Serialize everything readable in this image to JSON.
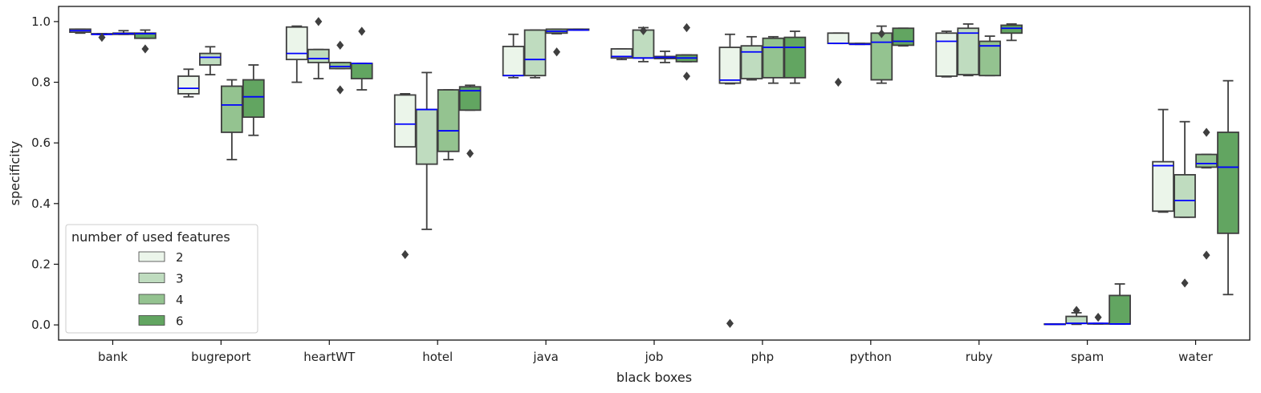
{
  "chart_data": {
    "type": "box",
    "xlabel": "black boxes",
    "ylabel": "specificity",
    "ylim": [
      -0.05,
      1.05
    ],
    "yticks": [
      "0.0",
      "0.2",
      "0.4",
      "0.6",
      "0.8",
      "1.0"
    ],
    "grid": false,
    "legend": {
      "title": "number of used features",
      "position": "lower-left",
      "entries": [
        "2",
        "3",
        "4",
        "6"
      ]
    },
    "colors": {
      "2": "#ebf5ea",
      "3": "#bfdcbf",
      "4": "#94c390",
      "6": "#62a561",
      "median": "#0000ff",
      "edge": "#3f3f3f"
    },
    "categories": [
      "bank",
      "bugreport",
      "heartWT",
      "hotel",
      "java",
      "job",
      "php",
      "python",
      "ruby",
      "spam",
      "water"
    ],
    "series": [
      {
        "name": "2",
        "boxes": [
          {
            "wlo": 0.962,
            "q1": 0.965,
            "med": 0.97,
            "q3": 0.975,
            "whi": 0.975,
            "fliers": []
          },
          {
            "wlo": 0.752,
            "q1": 0.762,
            "med": 0.78,
            "q3": 0.82,
            "whi": 0.843,
            "fliers": []
          },
          {
            "wlo": 0.8,
            "q1": 0.875,
            "med": 0.895,
            "q3": 0.982,
            "whi": 0.985,
            "fliers": []
          },
          {
            "wlo": 0.587,
            "q1": 0.587,
            "med": 0.662,
            "q3": 0.758,
            "whi": 0.762,
            "fliers": [
              0.232
            ]
          },
          {
            "wlo": 0.815,
            "q1": 0.822,
            "med": 0.822,
            "q3": 0.918,
            "whi": 0.958,
            "fliers": []
          },
          {
            "wlo": 0.875,
            "q1": 0.88,
            "med": 0.885,
            "q3": 0.91,
            "whi": 0.91,
            "fliers": []
          },
          {
            "wlo": 0.795,
            "q1": 0.797,
            "med": 0.807,
            "q3": 0.915,
            "whi": 0.958,
            "fliers": [
              0.005
            ]
          },
          {
            "wlo": 0.928,
            "q1": 0.928,
            "med": 0.928,
            "q3": 0.962,
            "whi": 0.962,
            "fliers": [
              0.8
            ]
          },
          {
            "wlo": 0.818,
            "q1": 0.82,
            "med": 0.935,
            "q3": 0.962,
            "whi": 0.968,
            "fliers": []
          },
          {
            "wlo": 0.002,
            "q1": 0.002,
            "med": 0.002,
            "q3": 0.003,
            "whi": 0.003,
            "fliers": []
          },
          {
            "wlo": 0.372,
            "q1": 0.375,
            "med": 0.525,
            "q3": 0.538,
            "whi": 0.71,
            "fliers": []
          }
        ]
      },
      {
        "name": "3",
        "boxes": [
          {
            "wlo": 0.958,
            "q1": 0.958,
            "med": 0.958,
            "q3": 0.96,
            "whi": 0.96,
            "fliers": [
              0.948
            ]
          },
          {
            "wlo": 0.825,
            "q1": 0.857,
            "med": 0.882,
            "q3": 0.895,
            "whi": 0.917,
            "fliers": []
          },
          {
            "wlo": 0.812,
            "q1": 0.865,
            "med": 0.878,
            "q3": 0.908,
            "whi": 0.908,
            "fliers": [
              1.0
            ]
          },
          {
            "wlo": 0.315,
            "q1": 0.53,
            "med": 0.71,
            "q3": 0.71,
            "whi": 0.832,
            "fliers": []
          },
          {
            "wlo": 0.815,
            "q1": 0.822,
            "med": 0.875,
            "q3": 0.972,
            "whi": 0.972,
            "fliers": []
          },
          {
            "wlo": 0.868,
            "q1": 0.88,
            "med": 0.88,
            "q3": 0.972,
            "whi": 0.98,
            "fliers": [
              0.97
            ]
          },
          {
            "wlo": 0.808,
            "q1": 0.812,
            "med": 0.9,
            "q3": 0.92,
            "whi": 0.95,
            "fliers": []
          },
          {
            "wlo": 0.925,
            "q1": 0.925,
            "med": 0.925,
            "q3": 0.928,
            "whi": 0.928,
            "fliers": []
          },
          {
            "wlo": 0.822,
            "q1": 0.825,
            "med": 0.962,
            "q3": 0.978,
            "whi": 0.992,
            "fliers": []
          },
          {
            "wlo": 0.002,
            "q1": 0.005,
            "med": 0.005,
            "q3": 0.028,
            "whi": 0.04,
            "fliers": [
              0.048
            ]
          },
          {
            "wlo": 0.355,
            "q1": 0.355,
            "med": 0.41,
            "q3": 0.495,
            "whi": 0.67,
            "fliers": [
              0.138
            ]
          }
        ]
      },
      {
        "name": "4",
        "boxes": [
          {
            "wlo": 0.958,
            "q1": 0.958,
            "med": 0.96,
            "q3": 0.962,
            "whi": 0.97,
            "fliers": []
          },
          {
            "wlo": 0.545,
            "q1": 0.635,
            "med": 0.725,
            "q3": 0.787,
            "whi": 0.808,
            "fliers": []
          },
          {
            "wlo": 0.845,
            "q1": 0.845,
            "med": 0.852,
            "q3": 0.865,
            "whi": 0.865,
            "fliers": [
              0.922,
              0.775
            ]
          },
          {
            "wlo": 0.545,
            "q1": 0.572,
            "med": 0.64,
            "q3": 0.775,
            "whi": 0.775,
            "fliers": []
          },
          {
            "wlo": 0.96,
            "q1": 0.962,
            "med": 0.968,
            "q3": 0.975,
            "whi": 0.975,
            "fliers": [
              0.9
            ]
          },
          {
            "wlo": 0.865,
            "q1": 0.878,
            "med": 0.882,
            "q3": 0.885,
            "whi": 0.902,
            "fliers": []
          },
          {
            "wlo": 0.797,
            "q1": 0.815,
            "med": 0.915,
            "q3": 0.945,
            "whi": 0.95,
            "fliers": []
          },
          {
            "wlo": 0.797,
            "q1": 0.808,
            "med": 0.932,
            "q3": 0.962,
            "whi": 0.985,
            "fliers": [
              0.96
            ]
          },
          {
            "wlo": 0.822,
            "q1": 0.822,
            "med": 0.92,
            "q3": 0.935,
            "whi": 0.952,
            "fliers": []
          },
          {
            "wlo": 0.003,
            "q1": 0.003,
            "med": 0.005,
            "q3": 0.005,
            "whi": 0.005,
            "fliers": [
              0.025
            ]
          },
          {
            "wlo": 0.518,
            "q1": 0.52,
            "med": 0.532,
            "q3": 0.562,
            "whi": 0.562,
            "fliers": [
              0.635,
              0.23
            ]
          }
        ]
      },
      {
        "name": "6",
        "boxes": [
          {
            "wlo": 0.945,
            "q1": 0.945,
            "med": 0.96,
            "q3": 0.962,
            "whi": 0.972,
            "fliers": [
              0.91
            ]
          },
          {
            "wlo": 0.625,
            "q1": 0.685,
            "med": 0.752,
            "q3": 0.808,
            "whi": 0.857,
            "fliers": []
          },
          {
            "wlo": 0.775,
            "q1": 0.812,
            "med": 0.862,
            "q3": 0.862,
            "whi": 0.862,
            "fliers": [
              0.968
            ]
          },
          {
            "wlo": 0.708,
            "q1": 0.708,
            "med": 0.772,
            "q3": 0.785,
            "whi": 0.79,
            "fliers": [
              0.565
            ]
          },
          {
            "wlo": 0.972,
            "q1": 0.972,
            "med": 0.972,
            "q3": 0.975,
            "whi": 0.975,
            "fliers": []
          },
          {
            "wlo": 0.868,
            "q1": 0.868,
            "med": 0.88,
            "q3": 0.89,
            "whi": 0.89,
            "fliers": [
              0.98,
              0.82
            ]
          },
          {
            "wlo": 0.797,
            "q1": 0.815,
            "med": 0.915,
            "q3": 0.948,
            "whi": 0.968,
            "fliers": []
          },
          {
            "wlo": 0.92,
            "q1": 0.922,
            "med": 0.935,
            "q3": 0.978,
            "whi": 0.978,
            "fliers": []
          },
          {
            "wlo": 0.938,
            "q1": 0.962,
            "med": 0.978,
            "q3": 0.988,
            "whi": 0.992,
            "fliers": []
          },
          {
            "wlo": 0.003,
            "q1": 0.003,
            "med": 0.003,
            "q3": 0.097,
            "whi": 0.135,
            "fliers": []
          },
          {
            "wlo": 0.1,
            "q1": 0.302,
            "med": 0.52,
            "q3": 0.635,
            "whi": 0.805,
            "fliers": []
          }
        ]
      }
    ]
  }
}
